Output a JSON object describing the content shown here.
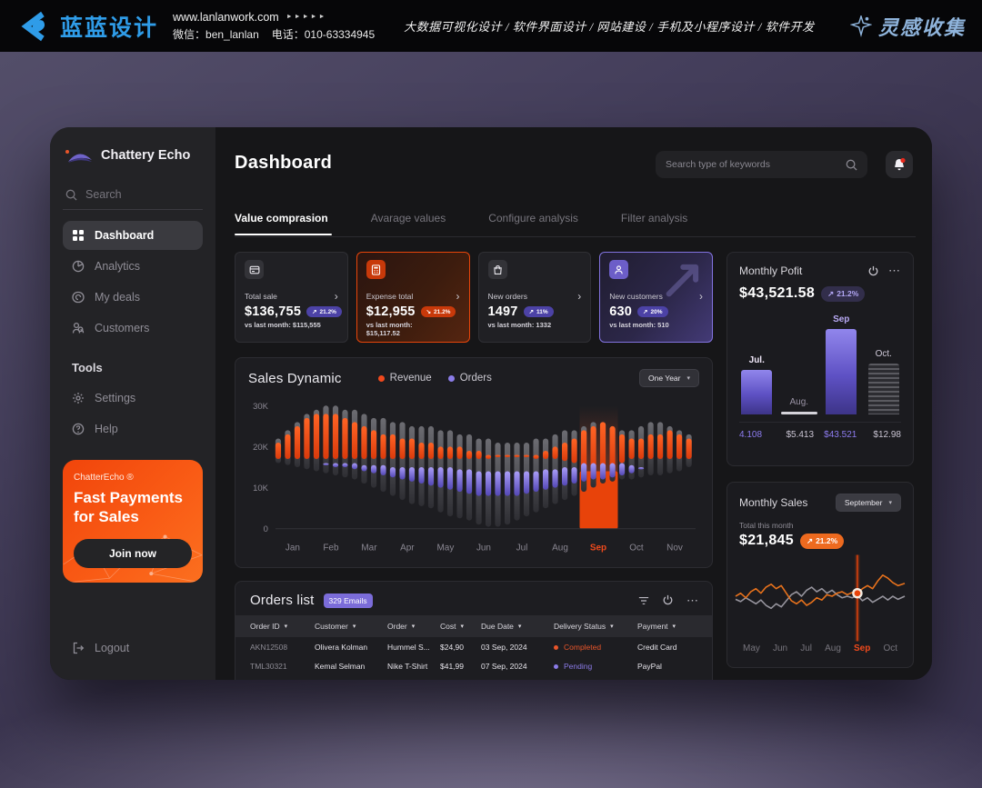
{
  "colors": {
    "accent_orange": "#e8430a",
    "accent_purple": "#8578e6",
    "badge_purple": "#5b4ec9",
    "status_completed": "#e8552a",
    "status_pending": "#8b7be8",
    "brand_blue": "#2f9ce8"
  },
  "icons": {
    "sort": "▾",
    "dropdown": "▾",
    "chevron_right": "›",
    "dots": "⋯",
    "trend_up": "↗",
    "trend_down": "↘",
    "arrows": "►►►►►"
  },
  "banner": {
    "brand": "蓝蓝设计",
    "website": "www.lanlanwork.com",
    "wechat": "微信：ben_lanlan",
    "phone": "电话：010-63334945",
    "services": "大数据可视化设计 / 软件界面设计 / 网站建设 / 手机及小程序设计 / 软件开发",
    "collect": "灵感收集"
  },
  "sidebar": {
    "app_name": "Chattery Echo",
    "search_placeholder": "Search",
    "menu": [
      {
        "label": "Dashboard",
        "active": true
      },
      {
        "label": "Analytics",
        "active": false
      },
      {
        "label": "My deals",
        "active": false
      },
      {
        "label": "Customers",
        "active": false
      }
    ],
    "tools_heading": "Tools",
    "tools": [
      {
        "label": "Settings"
      },
      {
        "label": "Help"
      }
    ],
    "promo": {
      "brand": "ChatterEcho ®",
      "title": "Fast Payments for Sales",
      "cta": "Join now"
    },
    "logout": "Logout"
  },
  "topbar": {
    "title": "Dashboard",
    "search_placeholder": "Search type of keywords"
  },
  "tabs": [
    {
      "label": "Value comprasion"
    },
    {
      "label": "Avarage values"
    },
    {
      "label": "Configure analysis"
    },
    {
      "label": "Filter analysis"
    }
  ],
  "stat_cards": [
    {
      "label": "Total sale",
      "value": "$136,755",
      "badge": "21.2%",
      "trend_glyph": "↗",
      "compare": "vs last month: $115,555"
    },
    {
      "label": "Expense total",
      "value": "$12,955",
      "badge": "21.2%",
      "trend_glyph": "↘",
      "compare": "vs last month: $15,117.52"
    },
    {
      "label": "New orders",
      "value": "1497",
      "badge": "11%",
      "trend_glyph": "↗",
      "compare": "vs last month: 1332"
    },
    {
      "label": "New customers",
      "value": "630",
      "badge": "20%",
      "trend_glyph": "↗",
      "compare": "vs last month: 510"
    }
  ],
  "monthly_profit": {
    "title": "Monthly Pofit",
    "value": "$43,521.58",
    "badge": "21.2%",
    "trend_glyph": "↗"
  },
  "sales_dynamic": {
    "title": "Sales Dynamic",
    "legend": [
      {
        "label": "Revenue"
      },
      {
        "label": "Orders"
      }
    ],
    "range": "One Year"
  },
  "monthly_sales": {
    "title": "Monthly Sales",
    "dropdown": "September",
    "total_label": "Total this month",
    "value": "$21,845",
    "badge": "21.2%",
    "trend_glyph": "↗"
  },
  "orders": {
    "title": "Orders list",
    "badge": "329 Emails",
    "columns": [
      {
        "label": "Order ID"
      },
      {
        "label": "Customer"
      },
      {
        "label": "Order"
      },
      {
        "label": "Cost"
      },
      {
        "label": "Due Date"
      },
      {
        "label": "Delivery Status"
      },
      {
        "label": "Payment"
      }
    ],
    "rows": [
      {
        "id": "AKN12508",
        "customer": "Olivera Kolman",
        "order": "Hummel S...",
        "cost": "$24,90",
        "due": "03 Sep, 2024",
        "status": "Completed",
        "payment": "Credit Card"
      },
      {
        "id": "TML30321",
        "customer": "Kemal Selman",
        "order": "Nike T-Shirt",
        "cost": "$41,99",
        "due": "07 Sep, 2024",
        "status": "Pending",
        "payment": "PayPal"
      }
    ]
  },
  "chart_data": [
    {
      "id": "monthly_profit",
      "type": "bar",
      "title": "Monthly Pofit",
      "categories": [
        "Jul.",
        "Aug.",
        "Sep",
        "Oct."
      ],
      "values": [
        4.108,
        5.413,
        43.521,
        12.98
      ],
      "values_text": [
        "4.108",
        "$5.413",
        "$43.521",
        "$12.98"
      ],
      "heights_pct": [
        44,
        3,
        84,
        50
      ],
      "bar_styles": [
        "purple",
        "thin",
        "purple",
        "gray"
      ],
      "label_colors": [
        "#f0e7f8",
        "#9a93a5",
        "#b9aaf5",
        "#cfc9d8"
      ],
      "value_colors": [
        "#8d7cf0",
        "#c9c4d2",
        "#8d7cf0",
        "#c9c4d2"
      ]
    },
    {
      "id": "sales_dynamic",
      "type": "bar",
      "title": "Sales Dynamic",
      "ylabels": [
        "30K",
        "20K",
        "10K",
        "0"
      ],
      "ylim": [
        0,
        30
      ],
      "months": [
        "Jan",
        "Feb",
        "Mar",
        "Apr",
        "May",
        "Jun",
        "Jul",
        "Aug",
        "Sep",
        "Oct",
        "Nov"
      ],
      "highlight_month": "Sep",
      "gray_top": [
        22,
        24,
        26,
        28,
        29,
        30,
        30,
        29,
        29,
        28,
        27,
        27,
        26,
        26,
        25,
        25,
        25,
        24,
        24,
        23,
        23,
        22,
        22,
        21,
        21,
        21,
        21,
        22,
        22,
        23,
        24,
        24,
        25,
        26,
        26,
        25,
        24,
        24,
        25,
        26,
        26,
        25,
        24,
        23
      ],
      "gray_bot": [
        16,
        15.5,
        15,
        14.5,
        14,
        13.5,
        13,
        12.5,
        12,
        11,
        10,
        9,
        8,
        7,
        6,
        5.5,
        5,
        4,
        3,
        2.5,
        2,
        1,
        0.5,
        0.5,
        1,
        2,
        3,
        4,
        5,
        6,
        7,
        8,
        9,
        10,
        11,
        11.5,
        12,
        12,
        12.5,
        13,
        13,
        13.5,
        14,
        15
      ],
      "revenue_top": [
        21,
        23,
        25,
        27,
        28,
        28,
        28,
        27,
        26,
        25,
        24,
        23,
        23,
        22,
        22,
        21,
        21,
        20,
        20,
        20,
        19,
        19,
        18,
        18,
        18,
        18,
        18,
        18,
        19,
        20,
        21,
        22,
        24,
        25,
        26,
        25,
        23,
        22,
        22,
        23,
        23,
        24,
        23,
        22
      ],
      "revenue_bot": [
        17,
        17,
        17,
        17,
        17,
        17,
        17,
        17,
        17,
        17,
        17,
        17,
        17,
        17,
        17,
        17,
        17,
        17,
        17,
        17,
        17,
        17,
        17,
        17.5,
        17.5,
        17.5,
        17.5,
        17,
        17,
        17,
        16.5,
        16,
        14,
        13.5,
        13.5,
        14,
        16,
        17,
        17,
        17,
        17,
        17,
        17,
        17
      ],
      "orders_top": [
        0,
        0,
        0,
        0,
        0,
        16,
        16,
        16,
        16,
        15.5,
        15.5,
        15.5,
        15,
        15,
        15,
        15,
        15,
        15,
        15,
        14.5,
        14.5,
        14,
        14,
        14,
        14,
        14,
        14,
        14,
        14.5,
        14.5,
        15,
        15,
        16,
        16,
        16,
        16,
        16,
        15.5,
        15,
        0,
        0,
        0,
        0,
        0
      ],
      "orders_bot": [
        0,
        0,
        0,
        0,
        0,
        15.5,
        15,
        15,
        14.5,
        14,
        13.5,
        13,
        12.5,
        12,
        11.5,
        11,
        10.5,
        10,
        9.5,
        9,
        8.5,
        8,
        8,
        8,
        8,
        8,
        8.5,
        9,
        9.5,
        10,
        10.5,
        11,
        11.5,
        12,
        12,
        12.5,
        13,
        13.5,
        14.5,
        0,
        0,
        0,
        0,
        0
      ],
      "highlight": {
        "col_start": 32,
        "col_end": 35,
        "from": 14,
        "to": 0
      }
    },
    {
      "id": "monthly_sales",
      "type": "line",
      "months": [
        "May",
        "Jun",
        "Jul",
        "Aug",
        "Sep",
        "Oct"
      ],
      "highlight_month": "Sep",
      "marker": {
        "x": 72,
        "y": 46
      },
      "series": [
        {
          "name": "sales",
          "color": "#e8721c",
          "points": [
            [
              0,
              50
            ],
            [
              3,
              46
            ],
            [
              6,
              52
            ],
            [
              9,
              44
            ],
            [
              12,
              40
            ],
            [
              15,
              46
            ],
            [
              18,
              38
            ],
            [
              21,
              34
            ],
            [
              24,
              40
            ],
            [
              27,
              36
            ],
            [
              30,
              46
            ],
            [
              33,
              56
            ],
            [
              36,
              60
            ],
            [
              39,
              55
            ],
            [
              42,
              62
            ],
            [
              45,
              58
            ],
            [
              48,
              52
            ],
            [
              51,
              55
            ],
            [
              54,
              48
            ],
            [
              57,
              50
            ],
            [
              60,
              46
            ],
            [
              63,
              44
            ],
            [
              66,
              48
            ],
            [
              69,
              45
            ],
            [
              72,
              46
            ],
            [
              75,
              40
            ],
            [
              78,
              36
            ],
            [
              81,
              40
            ],
            [
              84,
              30
            ],
            [
              87,
              22
            ],
            [
              90,
              26
            ],
            [
              93,
              32
            ],
            [
              96,
              36
            ],
            [
              100,
              33
            ]
          ]
        },
        {
          "name": "previous",
          "color": "#97959e",
          "points": [
            [
              0,
              54
            ],
            [
              3,
              57
            ],
            [
              6,
              52
            ],
            [
              9,
              56
            ],
            [
              12,
              60
            ],
            [
              15,
              55
            ],
            [
              18,
              62
            ],
            [
              21,
              66
            ],
            [
              24,
              60
            ],
            [
              27,
              64
            ],
            [
              30,
              56
            ],
            [
              33,
              48
            ],
            [
              36,
              44
            ],
            [
              39,
              50
            ],
            [
              42,
              42
            ],
            [
              45,
              38
            ],
            [
              48,
              44
            ],
            [
              51,
              40
            ],
            [
              54,
              46
            ],
            [
              57,
              42
            ],
            [
              60,
              48
            ],
            [
              63,
              52
            ],
            [
              66,
              50
            ],
            [
              69,
              52
            ],
            [
              72,
              49
            ],
            [
              75,
              56
            ],
            [
              78,
              52
            ],
            [
              81,
              58
            ],
            [
              84,
              54
            ],
            [
              87,
              50
            ],
            [
              90,
              55
            ],
            [
              93,
              50
            ],
            [
              96,
              54
            ],
            [
              100,
              50
            ]
          ]
        }
      ]
    }
  ]
}
